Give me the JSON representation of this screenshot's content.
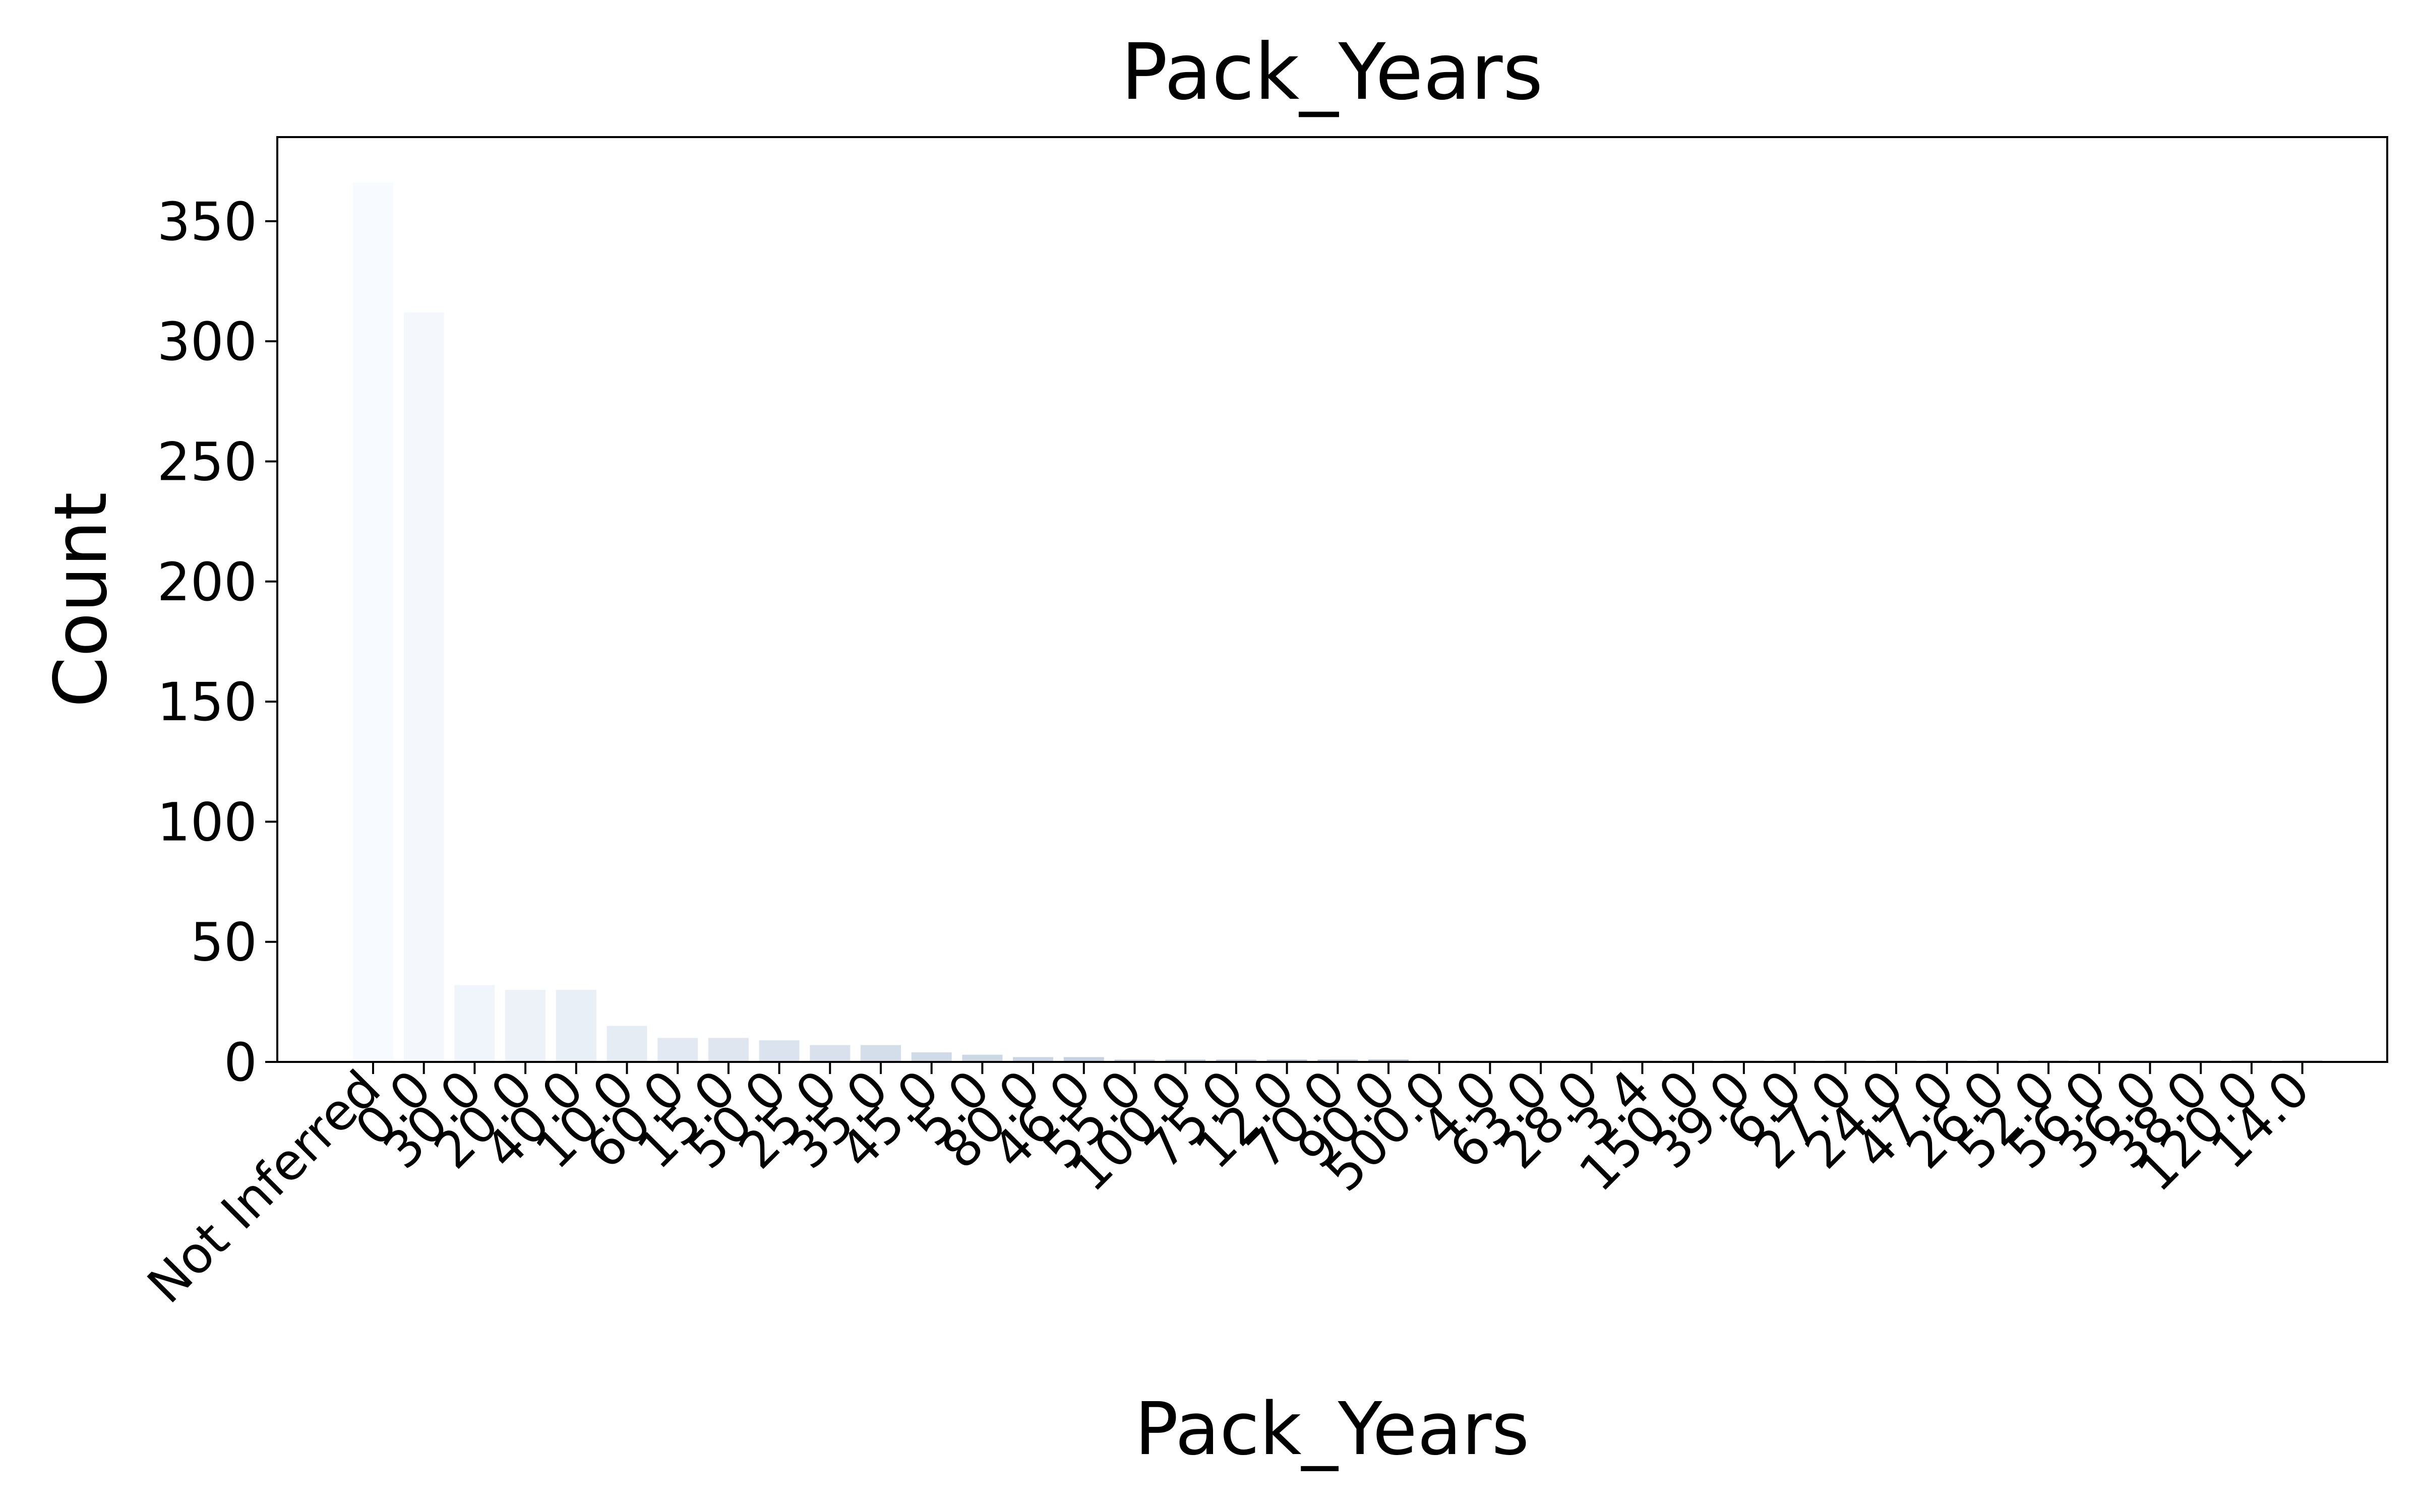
{
  "chart_data": {
    "type": "bar",
    "title": "Pack_Years",
    "xlabel": "Pack_Years",
    "ylabel": "Count",
    "ylim": [
      0,
      385
    ],
    "yticks": [
      0,
      50,
      100,
      150,
      200,
      250,
      300,
      350
    ],
    "grid": false,
    "legend": "none",
    "categories": [
      "Not Inferred",
      "0.0",
      "30.0",
      "20.0",
      "40.0",
      "10.0",
      "60.0",
      "15.0",
      "50.0",
      "25.0",
      "35.0",
      "45.0",
      "5.0",
      "80.0",
      "46.0",
      "55.0",
      "100.0",
      "75.0",
      "12.0",
      "70.0",
      "90.0",
      "500.0",
      "4.0",
      "63.0",
      "28.0",
      "3.4",
      "150.0",
      "39.0",
      "6.0",
      "27.0",
      "24.0",
      "47.0",
      "26.0",
      "52.0",
      "56.0",
      "36.0",
      "38.0",
      "120.0",
      "14.0"
    ],
    "values": [
      366,
      312,
      32,
      30,
      30,
      15,
      10,
      10,
      9,
      7,
      7,
      4,
      3,
      2,
      2,
      1,
      1,
      1,
      1,
      1,
      1,
      0.5,
      0.5,
      0.5,
      0.5,
      0.5,
      0.5,
      0.5,
      0.5,
      0.5,
      0.5,
      0.5,
      0.5,
      0.5,
      0.5,
      0.5,
      0.5,
      0.5,
      0.5
    ],
    "colormap": {
      "start": "#f7fbff",
      "end": "#08306b"
    }
  }
}
